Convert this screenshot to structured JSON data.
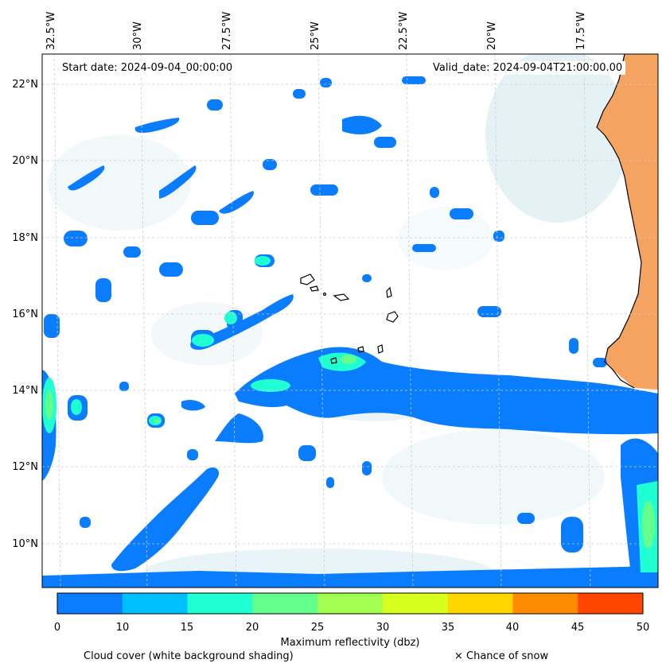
{
  "map": {
    "start_label": "Start date: 2024-09-04_00:00:00",
    "valid_label": "Valid_date: 2024-09-04T21:00:00.00",
    "lon_labels": [
      "32.5°W",
      "30°W",
      "27.5°W",
      "25°W",
      "22.5°W",
      "20°W",
      "17.5°W"
    ],
    "lat_labels": [
      "22°N",
      "20°N",
      "18°N",
      "16°N",
      "14°N",
      "12°N",
      "10°N"
    ],
    "colors": {
      "land_orange": "#f4a460",
      "cloud_shading": "#d8ecf2",
      "coastline": "#000000",
      "gridline": "#cccccc"
    }
  },
  "colorbar": {
    "label": "Maximum reflectivity (dbz)",
    "ticks": [
      "0",
      "10",
      "15",
      "20",
      "25",
      "30",
      "35",
      "40",
      "45",
      "50"
    ],
    "colors": [
      "#0a7dff",
      "#00bfff",
      "#1effd2",
      "#64ff8c",
      "#a0ff50",
      "#d7ff1e",
      "#ffd700",
      "#ff8c00",
      "#ff4500"
    ]
  },
  "legend": {
    "cloud_cover": "Cloud cover (white background shading)",
    "snow": "× Chance of snow"
  }
}
